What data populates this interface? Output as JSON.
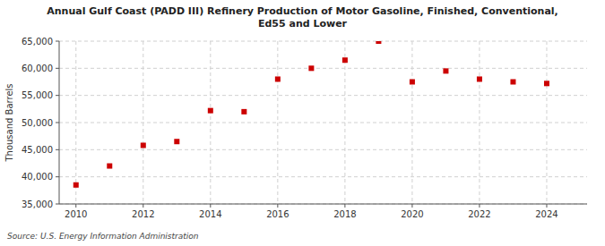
{
  "chart_data": {
    "type": "scatter",
    "title": "Annual Gulf Coast (PADD III) Refinery Production of Motor Gasoline, Finished, Conventional,\nEd55 and Lower",
    "ylabel": "Thousand Barrels",
    "source": "Source: U.S. Energy Information Administration",
    "x": [
      2010,
      2011,
      2012,
      2013,
      2014,
      2015,
      2016,
      2017,
      2018,
      2019,
      2020,
      2021,
      2022,
      2023,
      2024
    ],
    "values": [
      38500,
      42000,
      45800,
      46500,
      52200,
      52000,
      58000,
      60000,
      61500,
      65000,
      57500,
      59500,
      58000,
      57500,
      57200
    ],
    "color": "#cc0000",
    "marker": "square",
    "xlim": [
      2009.5,
      2025.2
    ],
    "xticks": [
      2010,
      2012,
      2014,
      2016,
      2018,
      2020,
      2022,
      2024
    ],
    "ylim": [
      35000,
      65000
    ],
    "yticks": [
      {
        "value": 35000,
        "label": "35,000"
      },
      {
        "value": 40000,
        "label": "40,000"
      },
      {
        "value": 45000,
        "label": "45,000"
      },
      {
        "value": 50000,
        "label": "50,000"
      },
      {
        "value": 55000,
        "label": "55,000"
      },
      {
        "value": 60000,
        "label": "60,000"
      },
      {
        "value": 65000,
        "label": "65,000"
      }
    ],
    "grid": true
  }
}
